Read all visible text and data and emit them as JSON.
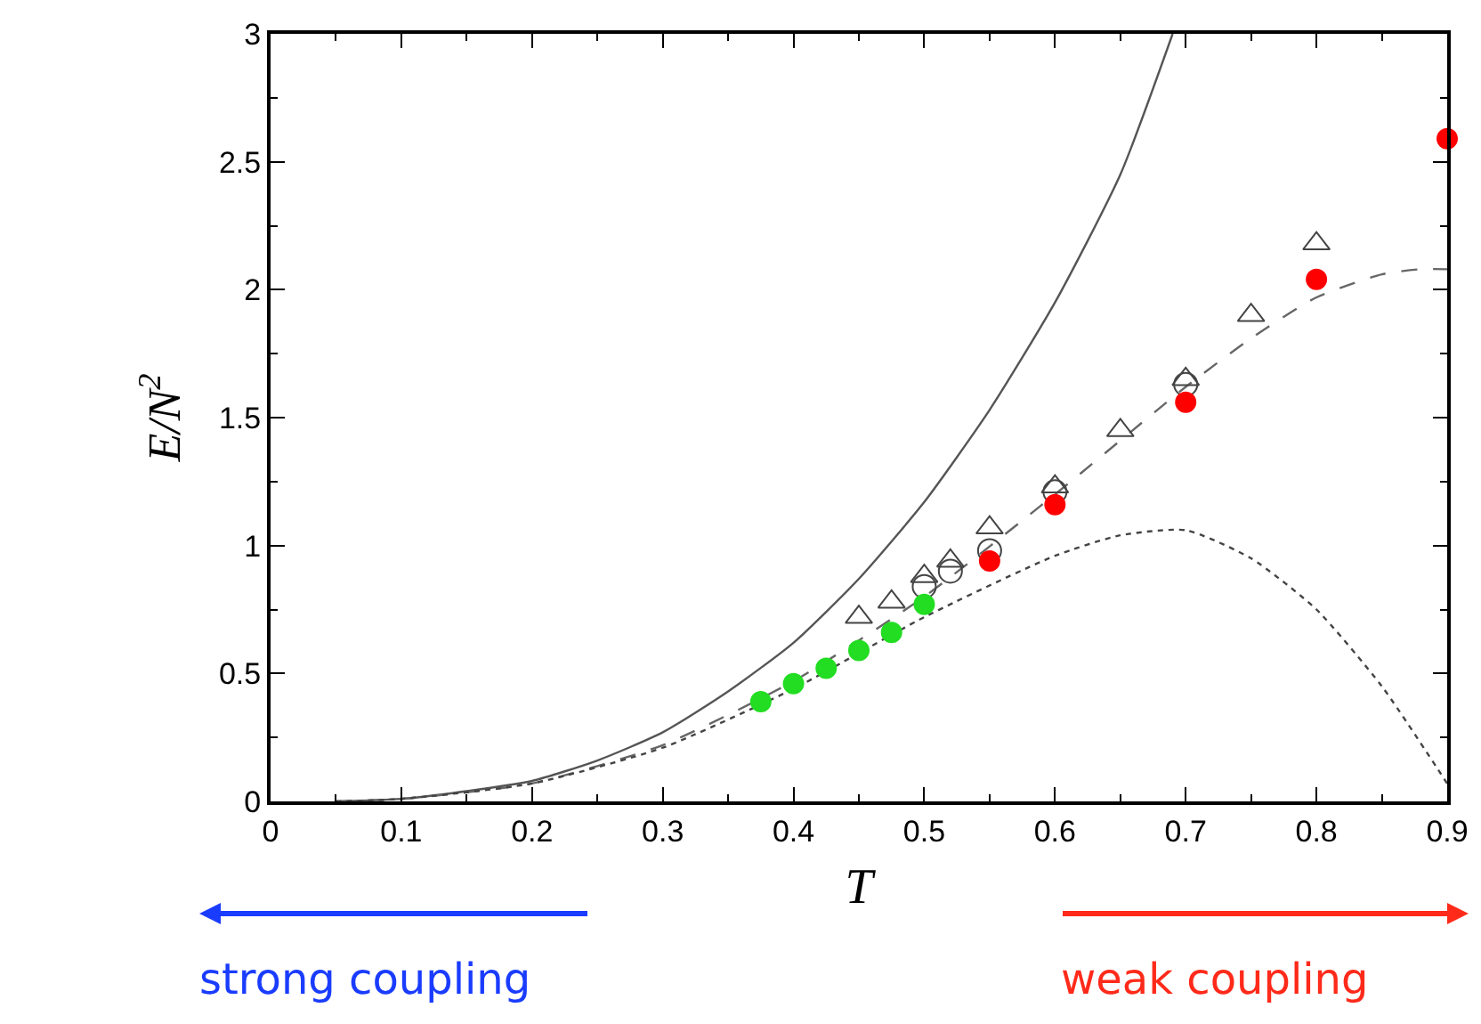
{
  "chart_data": {
    "type": "scatter",
    "xlabel": "T",
    "ylabel": "E/N$^{2}$",
    "xlim": [
      0,
      0.9
    ],
    "xticks": [
      0,
      0.1,
      0.2,
      0.3,
      0.4,
      0.5,
      0.6,
      0.7,
      0.8,
      0.9
    ],
    "ylim": [
      0,
      3
    ],
    "yticks": [
      0,
      0.5,
      1,
      1.5,
      2,
      2.5,
      3
    ],
    "grid": false,
    "series": [
      {
        "type": "line",
        "line_style": "solid",
        "marker": "none",
        "color": "#555555",
        "x": [
          0.05,
          0.1,
          0.15,
          0.2,
          0.25,
          0.3,
          0.35,
          0.4,
          0.45,
          0.5,
          0.55,
          0.6,
          0.65,
          0.69
        ],
        "values": [
          0.0,
          0.01,
          0.04,
          0.08,
          0.16,
          0.27,
          0.43,
          0.62,
          0.87,
          1.17,
          1.53,
          1.95,
          2.45,
          3.0
        ]
      },
      {
        "type": "line",
        "line_style": "dashed",
        "marker": "none",
        "color": "#666666",
        "x": [
          0.05,
          0.1,
          0.2,
          0.3,
          0.4,
          0.5,
          0.6,
          0.7,
          0.75,
          0.8,
          0.85,
          0.88,
          0.9
        ],
        "values": [
          0.0,
          0.01,
          0.07,
          0.22,
          0.47,
          0.8,
          1.2,
          1.62,
          1.81,
          1.97,
          2.06,
          2.08,
          2.08
        ]
      },
      {
        "type": "line",
        "line_style": "dotted",
        "marker": "none",
        "color": "#444444",
        "x": [
          0.05,
          0.1,
          0.2,
          0.3,
          0.4,
          0.5,
          0.6,
          0.65,
          0.7,
          0.75,
          0.8,
          0.85,
          0.9
        ],
        "values": [
          0.0,
          0.01,
          0.07,
          0.21,
          0.44,
          0.72,
          0.96,
          1.04,
          1.06,
          0.95,
          0.75,
          0.45,
          0.07
        ]
      },
      {
        "marker": "triangle",
        "color": "#444444",
        "x": [
          0.45,
          0.475,
          0.5,
          0.52,
          0.55,
          0.6,
          0.65,
          0.7,
          0.75,
          0.8
        ],
        "values": [
          0.72,
          0.78,
          0.88,
          0.94,
          1.07,
          1.23,
          1.45,
          1.65,
          1.9,
          2.18
        ]
      },
      {
        "marker": "circle",
        "color": "#444444",
        "x": [
          0.5,
          0.52,
          0.55,
          0.6,
          0.7
        ],
        "values": [
          0.84,
          0.9,
          0.98,
          1.21,
          1.63
        ]
      },
      {
        "marker": "circle",
        "color": "#ff0000",
        "x": [
          0.55,
          0.6,
          0.7,
          0.8,
          0.9
        ],
        "values": [
          0.94,
          1.16,
          1.56,
          2.04,
          2.59
        ]
      },
      {
        "marker": "circle",
        "color": "#22dd22",
        "x": [
          0.375,
          0.4,
          0.425,
          0.45,
          0.475,
          0.5
        ],
        "values": [
          0.39,
          0.46,
          0.52,
          0.59,
          0.66,
          0.77
        ]
      }
    ],
    "annotations": [
      "strong coupling",
      "weak coupling"
    ]
  }
}
